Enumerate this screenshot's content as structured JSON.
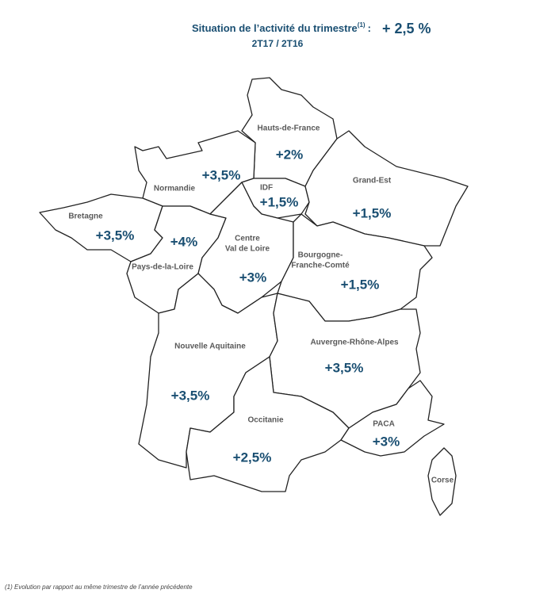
{
  "header": {
    "title": "Situation de l’activité du trimestre",
    "title_note": "(1)",
    "title_suffix": ":",
    "total": "+ 2,5 %",
    "period": "2T17 / 2T16"
  },
  "regions": [
    {
      "name_lines": [
        "Hauts-de-France"
      ],
      "change": "+2%"
    },
    {
      "name_lines": [
        "Normandie"
      ],
      "change": "+3,5%"
    },
    {
      "name_lines": [
        "IDF"
      ],
      "change": "+1,5%"
    },
    {
      "name_lines": [
        "Grand-Est"
      ],
      "change": "+1,5%"
    },
    {
      "name_lines": [
        "Bretagne"
      ],
      "change": "+3,5%"
    },
    {
      "name_lines": [
        "Pays-de-la-Loire"
      ],
      "change": "+4%"
    },
    {
      "name_lines": [
        "Centre",
        "Val de Loire"
      ],
      "change": "+3%"
    },
    {
      "name_lines": [
        "Bourgogne-",
        "Franche-Comté"
      ],
      "change": "+1,5%"
    },
    {
      "name_lines": [
        "Nouvelle Aquitaine"
      ],
      "change": "+3,5%"
    },
    {
      "name_lines": [
        "Auvergne-Rhône-Alpes"
      ],
      "change": "+3,5%"
    },
    {
      "name_lines": [
        "Occitanie"
      ],
      "change": "+2,5%"
    },
    {
      "name_lines": [
        "PACA"
      ],
      "change": "+3%"
    },
    {
      "name_lines": [
        "Corse"
      ]
    }
  ],
  "footnote": "(1) Evolution par rapport au même trimestre de l’année précédente"
}
